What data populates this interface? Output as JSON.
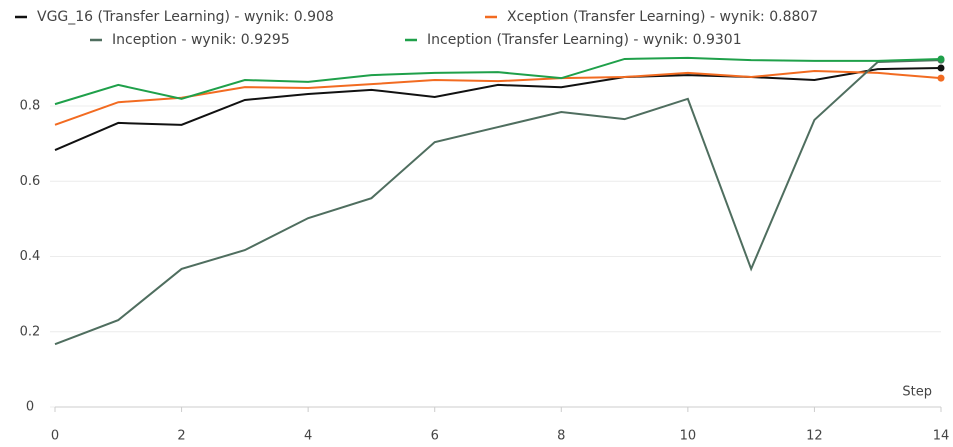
{
  "chart_data": {
    "type": "line",
    "x_label": "Step",
    "x": [
      0,
      1,
      2,
      3,
      4,
      5,
      6,
      7,
      8,
      9,
      10,
      11,
      12,
      13,
      14
    ],
    "xlim": [
      0,
      14
    ],
    "xticks": [
      0,
      2,
      4,
      6,
      8,
      10,
      12,
      14
    ],
    "ylim": [
      0,
      0.96
    ],
    "yticks": [
      0,
      0.2,
      0.4,
      0.6,
      0.8
    ],
    "grid": true,
    "series": [
      {
        "name": "VGG_16 (Transfer Learning) - wynik: 0.908",
        "color": "#111111",
        "values": [
          0.683,
          0.755,
          0.75,
          0.816,
          0.832,
          0.843,
          0.824,
          0.856,
          0.85,
          0.877,
          0.882,
          0.877,
          0.869,
          0.898,
          0.901
        ]
      },
      {
        "name": "Xception (Transfer Learning) - wynik: 0.8807",
        "color": "#f26b21",
        "values": [
          0.75,
          0.81,
          0.822,
          0.85,
          0.848,
          0.858,
          0.869,
          0.866,
          0.874,
          0.877,
          0.888,
          0.877,
          0.893,
          0.888,
          0.874
        ]
      },
      {
        "name": "Inception - wynik: 0.9295",
        "color": "#4f6e5f",
        "values": [
          0.167,
          0.231,
          0.367,
          0.417,
          0.502,
          0.555,
          0.704,
          0.744,
          0.784,
          0.765,
          0.819,
          0.367,
          0.763,
          0.917,
          0.922
        ]
      },
      {
        "name": "Inception (Transfer Learning) - wynik: 0.9301",
        "color": "#1fa04a",
        "values": [
          0.805,
          0.856,
          0.819,
          0.869,
          0.864,
          0.882,
          0.888,
          0.89,
          0.874,
          0.925,
          0.928,
          0.922,
          0.92,
          0.92,
          0.925
        ]
      }
    ]
  }
}
